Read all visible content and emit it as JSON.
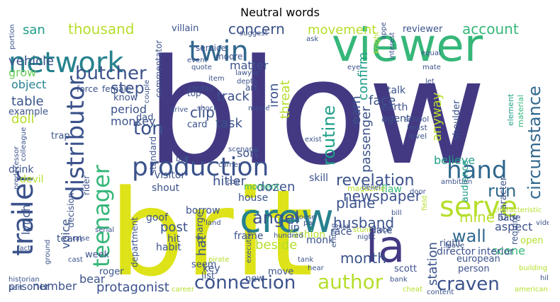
{
  "title": "Neutral words",
  "palette": {
    "dark_purple": "#433983",
    "indigo": "#3b528b",
    "blue": "#31688e",
    "teal": "#26828e",
    "green_teal": "#1f9e89",
    "green": "#35b779",
    "light_green": "#6ccd5a",
    "lime": "#b5de2b",
    "yellow": "#dde318"
  },
  "words": [
    {
      "text": "blow",
      "color": "dark_purple"
    },
    {
      "text": "brit",
      "color": "yellow"
    },
    {
      "text": "viewer",
      "color": "green"
    },
    {
      "text": "network",
      "color": "teal"
    },
    {
      "text": "production",
      "color": "indigo"
    },
    {
      "text": "crew",
      "color": "teal"
    },
    {
      "text": "la",
      "color": "dark_purple"
    },
    {
      "text": "hand",
      "color": "blue"
    },
    {
      "text": "twin",
      "color": "blue"
    },
    {
      "text": "serve",
      "color": "lime"
    },
    {
      "text": "trailer",
      "color": "indigo"
    },
    {
      "text": "distributor",
      "color": "indigo"
    },
    {
      "text": "teenager",
      "color": "green"
    },
    {
      "text": "butcher",
      "color": "indigo"
    },
    {
      "text": "circumstance",
      "color": "blue"
    },
    {
      "text": "author",
      "color": "lime"
    },
    {
      "text": "connection",
      "color": "indigo"
    },
    {
      "text": "craven",
      "color": "indigo"
    },
    {
      "text": "routine",
      "color": "green_teal"
    },
    {
      "text": "revelation",
      "color": "indigo"
    },
    {
      "text": "run",
      "color": "blue"
    },
    {
      "text": "wall",
      "color": "blue"
    },
    {
      "text": "mine",
      "color": "lime"
    },
    {
      "text": "step",
      "color": "indigo"
    },
    {
      "text": "angel",
      "color": "indigo"
    },
    {
      "text": "ton",
      "color": "indigo"
    },
    {
      "text": "newspaper",
      "color": "indigo"
    },
    {
      "text": "month",
      "color": "indigo"
    },
    {
      "text": "plane",
      "color": "indigo"
    },
    {
      "text": "husband",
      "color": "indigo"
    },
    {
      "text": "protagonist",
      "color": "indigo"
    },
    {
      "text": "account",
      "color": "green"
    },
    {
      "text": "movement",
      "color": "lime"
    },
    {
      "text": "concern",
      "color": "indigo"
    },
    {
      "text": "thousand",
      "color": "lime"
    },
    {
      "text": "san",
      "color": "green_teal"
    },
    {
      "text": "vehicle",
      "color": "indigo"
    },
    {
      "text": "grow",
      "color": "light_green"
    },
    {
      "text": "object",
      "color": "teal"
    },
    {
      "text": "table",
      "color": "indigo"
    },
    {
      "text": "doll",
      "color": "lime"
    },
    {
      "text": "period",
      "color": "indigo"
    },
    {
      "text": "monkey",
      "color": "indigo"
    },
    {
      "text": "clip",
      "color": "indigo"
    },
    {
      "text": "track",
      "color": "indigo"
    },
    {
      "text": "task",
      "color": "indigo"
    },
    {
      "text": "earn",
      "color": "indigo"
    },
    {
      "text": "confirm",
      "color": "green_teal"
    },
    {
      "text": "passenger",
      "color": "indigo"
    },
    {
      "text": "face",
      "color": "indigo"
    },
    {
      "text": "anyway",
      "color": "lime"
    },
    {
      "text": "matter",
      "color": "indigo"
    },
    {
      "text": "iron",
      "color": "indigo"
    },
    {
      "text": "threat",
      "color": "lime"
    },
    {
      "text": "hitler",
      "color": "indigo"
    },
    {
      "text": "dozen",
      "color": "indigo"
    },
    {
      "text": "believe",
      "color": "green_teal"
    },
    {
      "text": "sort",
      "color": "indigo"
    },
    {
      "text": "visitor",
      "color": "indigo"
    },
    {
      "text": "shout",
      "color": "indigo"
    },
    {
      "text": "post",
      "color": "indigo"
    },
    {
      "text": "hat",
      "color": "indigo"
    },
    {
      "text": "beside",
      "color": "lime"
    },
    {
      "text": "station",
      "color": "indigo"
    },
    {
      "text": "scene",
      "color": "green"
    },
    {
      "text": "aspect",
      "color": "indigo"
    },
    {
      "text": "bear",
      "color": "indigo"
    },
    {
      "text": "number",
      "color": "indigo"
    },
    {
      "text": "lynch",
      "color": "indigo"
    },
    {
      "text": "voice",
      "color": "indigo"
    },
    {
      "text": "talk",
      "color": "indigo"
    },
    {
      "text": "agent",
      "color": "indigo"
    },
    {
      "text": "earth",
      "color": "indigo"
    },
    {
      "text": "director",
      "color": "indigo"
    },
    {
      "text": "interior",
      "color": "indigo"
    },
    {
      "text": "date",
      "color": "indigo"
    },
    {
      "text": "lip",
      "color": "indigo"
    },
    {
      "text": "race",
      "color": "indigo"
    },
    {
      "text": "flaw",
      "color": "green"
    },
    {
      "text": "skill",
      "color": "indigo"
    },
    {
      "text": "house",
      "color": "indigo"
    },
    {
      "text": "frame",
      "color": "indigo"
    },
    {
      "text": "fashion",
      "color": "lime"
    },
    {
      "text": "monk",
      "color": "indigo"
    },
    {
      "text": "moment",
      "color": "green"
    },
    {
      "text": "borrow",
      "color": "indigo"
    },
    {
      "text": "charge",
      "color": "indigo"
    },
    {
      "text": "key",
      "color": "indigo"
    },
    {
      "text": "habit",
      "color": "indigo"
    },
    {
      "text": "week",
      "color": "indigo"
    },
    {
      "text": "roger",
      "color": "indigo"
    },
    {
      "text": "list",
      "color": "indigo"
    },
    {
      "text": "seem",
      "color": "indigo"
    },
    {
      "text": "new",
      "color": "indigo"
    },
    {
      "text": "move",
      "color": "indigo"
    },
    {
      "text": "scott",
      "color": "indigo"
    },
    {
      "text": "person",
      "color": "indigo"
    },
    {
      "text": "european",
      "color": "indigo"
    },
    {
      "text": "right",
      "color": "indigo"
    },
    {
      "text": "open",
      "color": "lime"
    },
    {
      "text": "babe",
      "color": "indigo"
    },
    {
      "text": "require",
      "color": "indigo"
    },
    {
      "text": "character",
      "color": "indigo"
    },
    {
      "text": "audience",
      "color": "green_teal"
    },
    {
      "text": "shoulder",
      "color": "indigo"
    },
    {
      "text": "prisoner",
      "color": "indigo"
    },
    {
      "text": "team",
      "color": "indigo"
    },
    {
      "text": "goof",
      "color": "indigo"
    },
    {
      "text": "hit",
      "color": "indigo"
    },
    {
      "text": "devil",
      "color": "lime"
    },
    {
      "text": "drink",
      "color": "indigo"
    },
    {
      "text": "example",
      "color": "indigo"
    },
    {
      "text": "trap",
      "color": "indigo"
    },
    {
      "text": "know",
      "color": "indigo"
    },
    {
      "text": "dad",
      "color": "indigo"
    },
    {
      "text": "card",
      "color": "indigo"
    },
    {
      "text": "top",
      "color": "indigo"
    },
    {
      "text": "art",
      "color": "indigo"
    },
    {
      "text": "reviewer",
      "color": "indigo"
    },
    {
      "text": "villain",
      "color": "indigo"
    },
    {
      "text": "service",
      "color": "indigo"
    },
    {
      "text": "moore",
      "color": "indigo"
    },
    {
      "text": "force",
      "color": "indigo"
    },
    {
      "text": "female",
      "color": "indigo"
    },
    {
      "text": "commentator",
      "color": "indigo"
    },
    {
      "text": "standard",
      "color": "indigo"
    },
    {
      "text": "decision",
      "color": "indigo"
    },
    {
      "text": "rider",
      "color": "indigo"
    },
    {
      "text": "department",
      "color": "indigo"
    },
    {
      "text": "material",
      "color": "green"
    },
    {
      "text": "element",
      "color": "green_teal"
    },
    {
      "text": "school",
      "color": "indigo"
    },
    {
      "text": "insist",
      "color": "indigo"
    },
    {
      "text": "level",
      "color": "indigo"
    },
    {
      "text": "exist",
      "color": "indigo"
    },
    {
      "text": "magazine",
      "color": "lime"
    },
    {
      "text": "ambition",
      "color": "indigo"
    },
    {
      "text": "characteristic",
      "color": "lime"
    },
    {
      "text": "video",
      "color": "indigo"
    },
    {
      "text": "leave",
      "color": "indigo"
    },
    {
      "text": "building",
      "color": "lime"
    },
    {
      "text": "hill",
      "color": "indigo"
    },
    {
      "text": "american",
      "color": "lime"
    },
    {
      "text": "content",
      "color": "indigo"
    },
    {
      "text": "cheat",
      "color": "lime"
    },
    {
      "text": "bank",
      "color": "indigo"
    },
    {
      "text": "tank",
      "color": "indigo"
    },
    {
      "text": "hear",
      "color": "indigo"
    },
    {
      "text": "night",
      "color": "indigo"
    },
    {
      "text": "stunt",
      "color": "lime"
    },
    {
      "text": "ending",
      "color": "indigo"
    },
    {
      "text": "hook",
      "color": "indigo"
    },
    {
      "text": "pick",
      "color": "indigo"
    },
    {
      "text": "bill",
      "color": "indigo"
    },
    {
      "text": "pal",
      "color": "indigo"
    },
    {
      "text": "choose",
      "color": "indigo"
    },
    {
      "text": "hundred",
      "color": "indigo"
    },
    {
      "text": "land",
      "color": "indigo"
    },
    {
      "text": "raise",
      "color": "indigo"
    },
    {
      "text": "serial",
      "color": "indigo"
    },
    {
      "text": "boy",
      "color": "indigo"
    },
    {
      "text": "corner",
      "color": "indigo"
    },
    {
      "text": "cop",
      "color": "indigo"
    },
    {
      "text": "pirate",
      "color": "lime"
    },
    {
      "text": "executive",
      "color": "indigo"
    },
    {
      "text": "career",
      "color": "lime"
    },
    {
      "text": "historian",
      "color": "indigo"
    },
    {
      "text": "part",
      "color": "indigo"
    },
    {
      "text": "cast",
      "color": "indigo"
    },
    {
      "text": "ground",
      "color": "indigo"
    },
    {
      "text": "fact",
      "color": "indigo"
    },
    {
      "text": "predecessor",
      "color": "indigo"
    },
    {
      "text": "colleague",
      "color": "indigo"
    },
    {
      "text": "portion",
      "color": "indigo"
    },
    {
      "text": "quote",
      "color": "indigo"
    },
    {
      "text": "item",
      "color": "indigo"
    },
    {
      "text": "contain",
      "color": "indigo"
    },
    {
      "text": "movie",
      "color": "indigo"
    },
    {
      "text": "shock",
      "color": "indigo"
    },
    {
      "text": "drive",
      "color": "indigo"
    },
    {
      "text": "scenario",
      "color": "indigo"
    },
    {
      "text": "belief",
      "color": "indigo"
    },
    {
      "text": "door",
      "color": "indigo"
    },
    {
      "text": "field",
      "color": "lime"
    },
    {
      "text": "lawyer",
      "color": "indigo"
    },
    {
      "text": "depth",
      "color": "indigo"
    },
    {
      "text": "event",
      "color": "indigo"
    },
    {
      "text": "suggest",
      "color": "indigo"
    },
    {
      "text": "ask",
      "color": "indigo"
    },
    {
      "text": "eye",
      "color": "indigo"
    },
    {
      "text": "interest",
      "color": "indigo"
    },
    {
      "text": "appeal",
      "color": "indigo"
    },
    {
      "text": "knight",
      "color": "lime"
    },
    {
      "text": "equal",
      "color": "indigo"
    },
    {
      "text": "mate",
      "color": "indigo"
    },
    {
      "text": "let",
      "color": "indigo"
    },
    {
      "text": "couple",
      "color": "indigo"
    }
  ]
}
